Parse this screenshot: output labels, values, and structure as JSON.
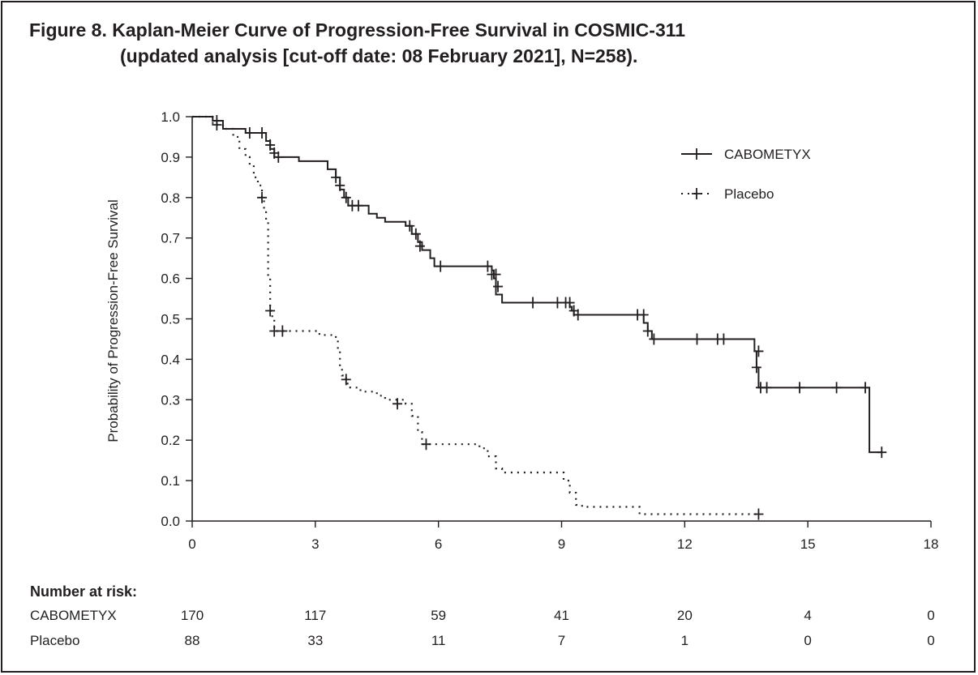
{
  "figure": {
    "title_line1": "Figure 8. Kaplan-Meier Curve of Progression-Free Survival in COSMIC-311",
    "title_line2": "(updated analysis [cut-off date: 08 February 2021], N=258)."
  },
  "chart_data": {
    "type": "line",
    "title": "Figure 8. Kaplan-Meier Curve of Progression-Free Survival in COSMIC-311 (updated analysis [cut-off date: 08 February 2021], N=258).",
    "xlabel": "",
    "ylabel": "Probability of Progression-Free Survival",
    "xlim": [
      0,
      18
    ],
    "ylim": [
      0.0,
      1.0
    ],
    "xticks": [
      0,
      3,
      6,
      9,
      12,
      15,
      18
    ],
    "yticks": [
      0.0,
      0.1,
      0.2,
      0.3,
      0.4,
      0.5,
      0.6,
      0.7,
      0.8,
      0.9,
      1.0
    ],
    "ytick_labels": [
      "0.0",
      "0.1",
      "0.2",
      "0.3",
      "0.4",
      "0.5",
      "0.6",
      "0.7",
      "0.8",
      "0.9",
      "1.0"
    ],
    "legend_position": "top-right",
    "grid": false,
    "series": [
      {
        "name": "CABOMETYX",
        "line_style": "solid",
        "color": "#231f20",
        "steps": [
          [
            0,
            1.0
          ],
          [
            0.5,
            0.99
          ],
          [
            0.75,
            0.97
          ],
          [
            1.3,
            0.96
          ],
          [
            1.8,
            0.94
          ],
          [
            1.9,
            0.92
          ],
          [
            2.0,
            0.9
          ],
          [
            2.6,
            0.89
          ],
          [
            3.3,
            0.87
          ],
          [
            3.5,
            0.85
          ],
          [
            3.6,
            0.82
          ],
          [
            3.7,
            0.8
          ],
          [
            3.8,
            0.78
          ],
          [
            4.3,
            0.76
          ],
          [
            4.5,
            0.75
          ],
          [
            4.7,
            0.74
          ],
          [
            5.2,
            0.73
          ],
          [
            5.35,
            0.71
          ],
          [
            5.5,
            0.69
          ],
          [
            5.6,
            0.67
          ],
          [
            5.8,
            0.65
          ],
          [
            5.9,
            0.63
          ],
          [
            7.3,
            0.62
          ],
          [
            7.35,
            0.6
          ],
          [
            7.4,
            0.56
          ],
          [
            7.55,
            0.54
          ],
          [
            9.2,
            0.53
          ],
          [
            9.25,
            0.52
          ],
          [
            9.3,
            0.51
          ],
          [
            11.0,
            0.49
          ],
          [
            11.1,
            0.47
          ],
          [
            11.2,
            0.45
          ],
          [
            13.7,
            0.42
          ],
          [
            13.75,
            0.38
          ],
          [
            13.8,
            0.33
          ],
          [
            16.5,
            0.17
          ]
        ],
        "end_x": 16.8,
        "censors": [
          [
            0.6,
            0.99
          ],
          [
            1.4,
            0.96
          ],
          [
            1.7,
            0.96
          ],
          [
            1.9,
            0.93
          ],
          [
            2.0,
            0.91
          ],
          [
            2.1,
            0.9
          ],
          [
            3.5,
            0.85
          ],
          [
            3.6,
            0.83
          ],
          [
            3.75,
            0.8
          ],
          [
            3.9,
            0.78
          ],
          [
            4.05,
            0.78
          ],
          [
            5.3,
            0.73
          ],
          [
            5.45,
            0.71
          ],
          [
            5.55,
            0.68
          ],
          [
            6.05,
            0.63
          ],
          [
            7.2,
            0.63
          ],
          [
            7.3,
            0.61
          ],
          [
            7.4,
            0.61
          ],
          [
            7.45,
            0.58
          ],
          [
            8.3,
            0.54
          ],
          [
            8.9,
            0.54
          ],
          [
            9.1,
            0.54
          ],
          [
            9.2,
            0.54
          ],
          [
            9.3,
            0.52
          ],
          [
            9.4,
            0.51
          ],
          [
            10.85,
            0.51
          ],
          [
            11.0,
            0.51
          ],
          [
            11.1,
            0.47
          ],
          [
            11.25,
            0.45
          ],
          [
            12.3,
            0.45
          ],
          [
            12.8,
            0.45
          ],
          [
            12.95,
            0.45
          ],
          [
            13.8,
            0.42
          ],
          [
            13.75,
            0.38
          ],
          [
            13.85,
            0.33
          ],
          [
            14.0,
            0.33
          ],
          [
            14.8,
            0.33
          ],
          [
            15.7,
            0.33
          ],
          [
            16.4,
            0.33
          ],
          [
            16.8,
            0.17
          ]
        ]
      },
      {
        "name": "Placebo",
        "line_style": "dotted",
        "color": "#231f20",
        "steps": [
          [
            0,
            1.0
          ],
          [
            0.5,
            0.98
          ],
          [
            0.75,
            0.97
          ],
          [
            1.0,
            0.95
          ],
          [
            1.15,
            0.92
          ],
          [
            1.3,
            0.9
          ],
          [
            1.4,
            0.88
          ],
          [
            1.5,
            0.85
          ],
          [
            1.6,
            0.83
          ],
          [
            1.7,
            0.8
          ],
          [
            1.75,
            0.77
          ],
          [
            1.8,
            0.74
          ],
          [
            1.85,
            0.6
          ],
          [
            1.9,
            0.52
          ],
          [
            1.95,
            0.5
          ],
          [
            2.0,
            0.47
          ],
          [
            3.1,
            0.46
          ],
          [
            3.5,
            0.45
          ],
          [
            3.55,
            0.42
          ],
          [
            3.6,
            0.38
          ],
          [
            3.65,
            0.36
          ],
          [
            3.75,
            0.34
          ],
          [
            3.85,
            0.33
          ],
          [
            4.1,
            0.32
          ],
          [
            4.5,
            0.31
          ],
          [
            4.7,
            0.3
          ],
          [
            5.2,
            0.29
          ],
          [
            5.35,
            0.26
          ],
          [
            5.5,
            0.22
          ],
          [
            5.6,
            0.19
          ],
          [
            7.0,
            0.18
          ],
          [
            7.2,
            0.16
          ],
          [
            7.4,
            0.13
          ],
          [
            7.55,
            0.12
          ],
          [
            9.05,
            0.1
          ],
          [
            9.2,
            0.07
          ],
          [
            9.35,
            0.04
          ],
          [
            9.5,
            0.035
          ],
          [
            10.9,
            0.017
          ]
        ],
        "end_x": 13.8,
        "censors": [
          [
            0.6,
            0.98
          ],
          [
            1.7,
            0.8
          ],
          [
            1.9,
            0.52
          ],
          [
            2.0,
            0.47
          ],
          [
            2.2,
            0.47
          ],
          [
            3.75,
            0.35
          ],
          [
            5.0,
            0.29
          ],
          [
            5.7,
            0.19
          ],
          [
            13.8,
            0.017
          ]
        ]
      }
    ]
  },
  "risk_table": {
    "header": "Number at risk:",
    "times": [
      0,
      3,
      6,
      9,
      12,
      15,
      18
    ],
    "rows": [
      {
        "label": "CABOMETYX",
        "counts": [
          "170",
          "117",
          "59",
          "41",
          "20",
          "4",
          "0"
        ]
      },
      {
        "label": "Placebo",
        "counts": [
          "88",
          "33",
          "11",
          "7",
          "1",
          "0",
          "0"
        ]
      }
    ]
  }
}
